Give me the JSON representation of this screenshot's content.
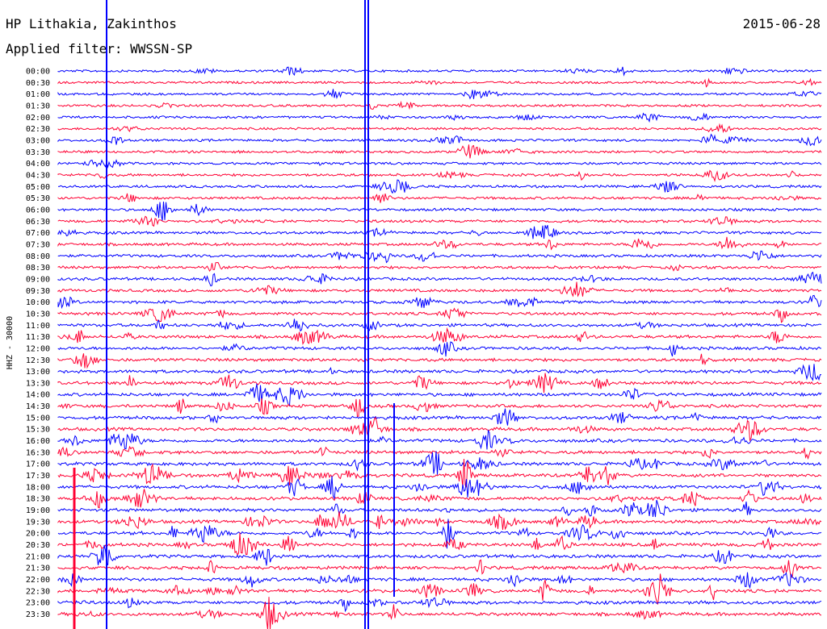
{
  "header": {
    "station": "HP Lithakia, Zakinthos",
    "date": "2015-06-28",
    "filter_label": "Applied filter: WWSSN-SP"
  },
  "chart_data": {
    "type": "line",
    "ylabel": "HHZ - 30000",
    "row_labels": [
      "00:00",
      "00:30",
      "01:00",
      "01:30",
      "02:00",
      "02:30",
      "03:00",
      "03:30",
      "04:00",
      "04:30",
      "05:00",
      "05:30",
      "06:00",
      "06:30",
      "07:00",
      "07:30",
      "08:00",
      "08:30",
      "09:00",
      "09:30",
      "10:00",
      "10:30",
      "11:00",
      "11:30",
      "12:00",
      "12:30",
      "13:00",
      "13:30",
      "14:00",
      "14:30",
      "15:00",
      "15:30",
      "16:00",
      "16:30",
      "17:00",
      "17:30",
      "18:00",
      "18:30",
      "19:00",
      "19:30",
      "20:00",
      "20:30",
      "21:00",
      "21:30",
      "22:00",
      "22:30",
      "23:00",
      "23:30"
    ],
    "colors": {
      "even_rows": "#0000ff",
      "odd_rows": "#ff0033"
    },
    "series_pattern": "alternating blue/red rows, one trace per 30-minute window"
  }
}
